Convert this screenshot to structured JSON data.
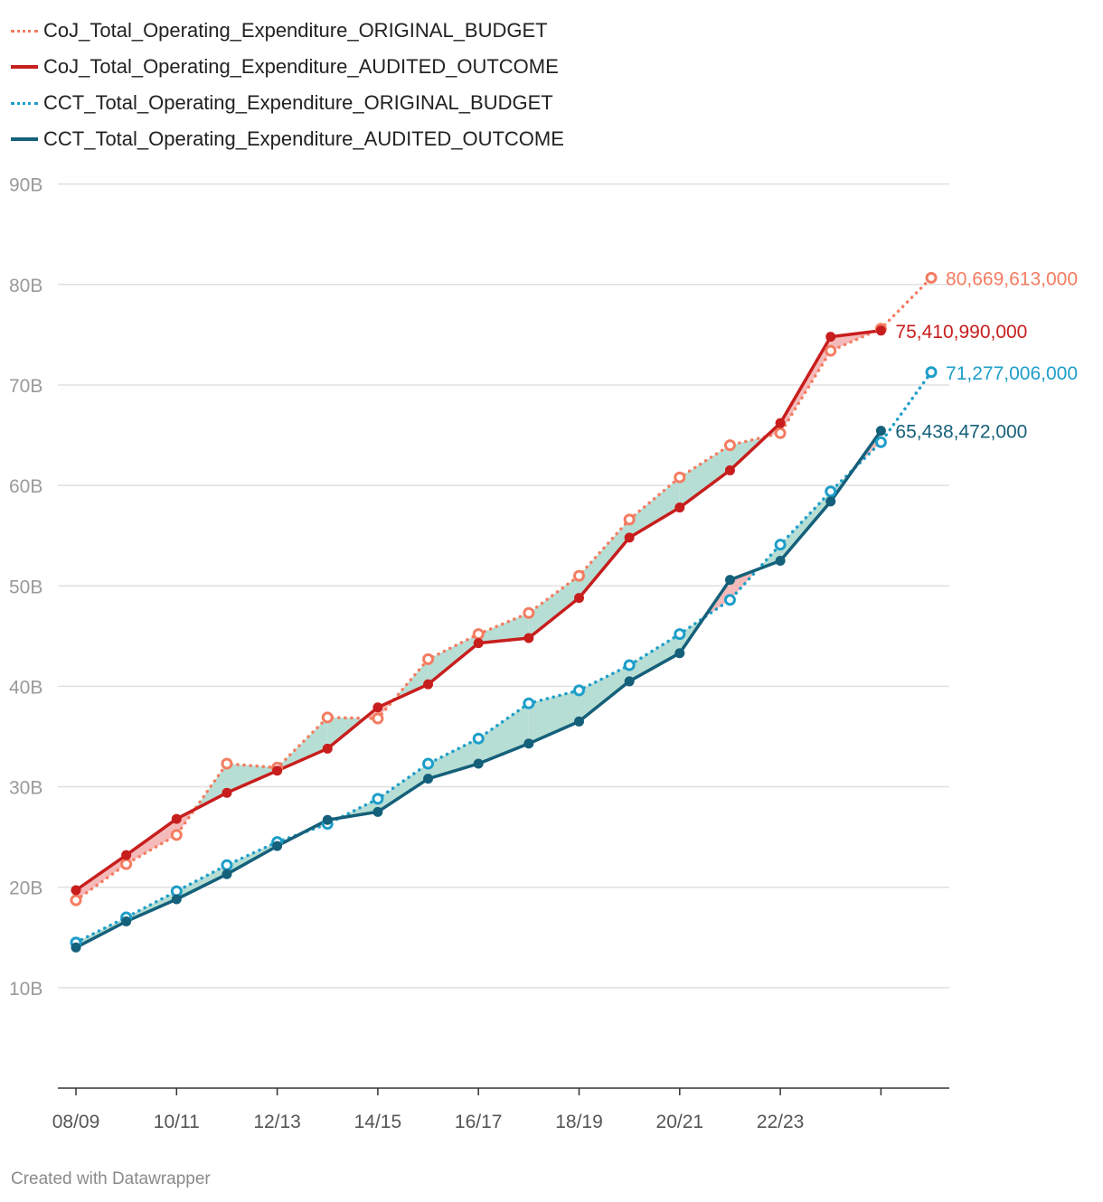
{
  "footer": "Created with Datawrapper",
  "chart_data": {
    "type": "line",
    "title": "",
    "xlabel": "",
    "ylabel": "",
    "legend_position": "top-left",
    "grid": true,
    "ylim": [
      0,
      90000000000
    ],
    "y_ticks": [
      10000000000,
      20000000000,
      30000000000,
      40000000000,
      50000000000,
      60000000000,
      70000000000,
      80000000000,
      90000000000
    ],
    "y_tick_labels": [
      "10B",
      "20B",
      "30B",
      "40B",
      "50B",
      "60B",
      "70B",
      "80B",
      "90B"
    ],
    "x": [
      "08/09",
      "09/10",
      "10/11",
      "11/12",
      "12/13",
      "13/14",
      "14/15",
      "15/16",
      "16/17",
      "17/18",
      "18/19",
      "19/20",
      "20/21",
      "21/22",
      "22/23",
      "23/24",
      "24/25",
      "25/26"
    ],
    "x_tick_labels": [
      "08/09",
      "10/11",
      "12/13",
      "14/15",
      "16/17",
      "18/19",
      "20/21",
      "22/23"
    ],
    "series": [
      {
        "name": "CoJ_Total_Operating_Expenditure_ORIGINAL_BUDGET",
        "color": "#f47c61",
        "style": "dotted",
        "marker": "open",
        "values": [
          18700000000,
          22300000000,
          25200000000,
          32300000000,
          31900000000,
          36900000000,
          36800000000,
          42700000000,
          45200000000,
          47300000000,
          51000000000,
          56600000000,
          60800000000,
          64000000000,
          65200000000,
          73400000000,
          75600000000,
          80669613000
        ],
        "end_label": "80,669,613,000"
      },
      {
        "name": "CoJ_Total_Operating_Expenditure_AUDITED_OUTCOME",
        "color": "#c71e1d",
        "style": "solid",
        "marker": "filled",
        "values": [
          19700000000,
          23200000000,
          26800000000,
          29400000000,
          31600000000,
          33800000000,
          37900000000,
          40200000000,
          44300000000,
          44800000000,
          48800000000,
          54800000000,
          57800000000,
          61500000000,
          66200000000,
          74800000000,
          75410990000,
          null
        ],
        "end_label": "75,410,990,000"
      },
      {
        "name": "CCT_Total_Operating_Expenditure_ORIGINAL_BUDGET",
        "color": "#1d9ec9",
        "style": "dotted",
        "marker": "open",
        "values": [
          14500000000,
          17000000000,
          19600000000,
          22200000000,
          24500000000,
          26300000000,
          28800000000,
          32300000000,
          34800000000,
          38300000000,
          39600000000,
          42100000000,
          45200000000,
          48600000000,
          54100000000,
          59400000000,
          64300000000,
          71277006000
        ],
        "end_label": "71,277,006,000"
      },
      {
        "name": "CCT_Total_Operating_Expenditure_AUDITED_OUTCOME",
        "color": "#15607a",
        "style": "solid",
        "marker": "filled",
        "values": [
          14000000000,
          16600000000,
          18800000000,
          21300000000,
          24100000000,
          26700000000,
          27500000000,
          30800000000,
          32300000000,
          34300000000,
          36500000000,
          40500000000,
          43300000000,
          50600000000,
          52500000000,
          58400000000,
          65438472000,
          null
        ],
        "end_label": "65,438,472,000"
      }
    ],
    "area_fill_colors": {
      "budget_above": "#b3dcd2",
      "outcome_above": "#f4b6b6"
    }
  }
}
